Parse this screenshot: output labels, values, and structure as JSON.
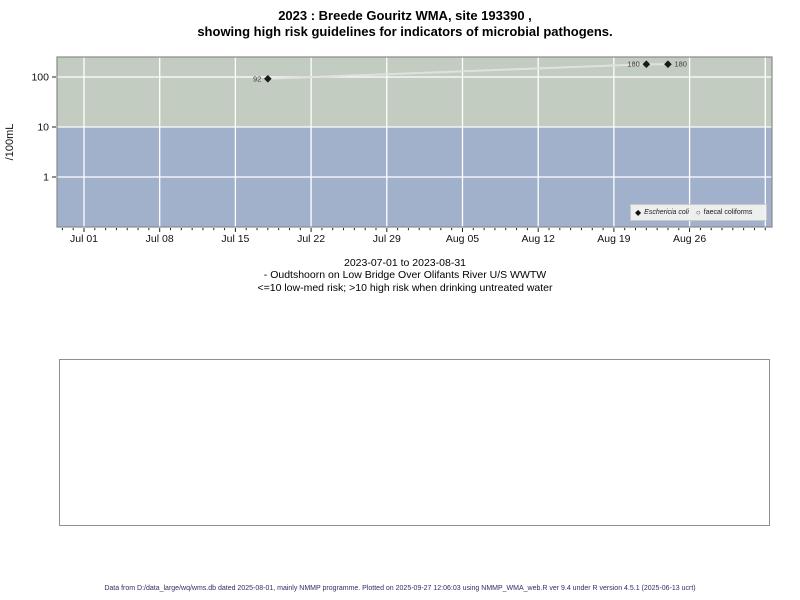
{
  "chart_data": {
    "type": "scatter",
    "title_line1": "2023 : Breede Gouritz WMA, site 193390 ,",
    "title_line2": "showing high risk guidelines for indicators of microbial pathogens.",
    "ylabel": "/100mL",
    "y_scale": "log10",
    "y_ticks": [
      100,
      10,
      1
    ],
    "ylim": [
      0.09,
      250
    ],
    "x_range": "2023-07-01 to 2023-08-31",
    "x_tick_labels": [
      "Jul 01",
      "Jul 08",
      "Jul 15",
      "Jul 22",
      "Jul 29",
      "Aug 05",
      "Aug 12",
      "Aug 19",
      "Aug 26"
    ],
    "x_tick_days": [
      0,
      7,
      14,
      21,
      28,
      35,
      42,
      49,
      56
    ],
    "x_gridline_days": [
      0,
      7,
      14,
      21,
      28,
      35,
      42,
      49,
      56,
      63
    ],
    "xlim_days": [
      -2.44,
      63.44
    ],
    "grid": true,
    "risk_threshold": 10,
    "bands": [
      {
        "zone": "high risk (>10)",
        "color": "#c3ccc1"
      },
      {
        "zone": "low-med risk (<=10)",
        "color": "#a2b1cb"
      }
    ],
    "series": [
      {
        "name": "Eschericia coli",
        "marker": "filled-diamond",
        "marker_color": "#1a1a1a",
        "line_color": "#e2e2df",
        "points": [
          {
            "date": "2023-07-18",
            "day": 17,
            "value": 92,
            "label": "92",
            "label_side": "left"
          },
          {
            "date": "2023-08-22",
            "day": 52,
            "value": 180,
            "label": "180",
            "label_side": "left"
          },
          {
            "date": "2023-08-24",
            "day": 54,
            "value": 180,
            "label": "180",
            "label_side": "right"
          }
        ]
      },
      {
        "name": "faecal coliforms",
        "marker": "open-circle",
        "marker_color": "#444444",
        "points": []
      }
    ],
    "legend": {
      "position": "bottom-right"
    }
  },
  "captions": [
    "2023-07-01 to 2023-08-31",
    "- Oudtshoorn on Low Bridge Over Olifants River U/S WWTW",
    "<=10 low-med risk; >10 high risk when drinking untreated water"
  ],
  "footer": "Data from D:/data_large/wq/wms.db dated 2025-08-01, mainly NMMP programme. Plotted on 2025-09-27 12:06:03 using NMMP_WMA_web.R ver 9.4 under R version 4.5.1 (2025-06-13 ucrt)"
}
